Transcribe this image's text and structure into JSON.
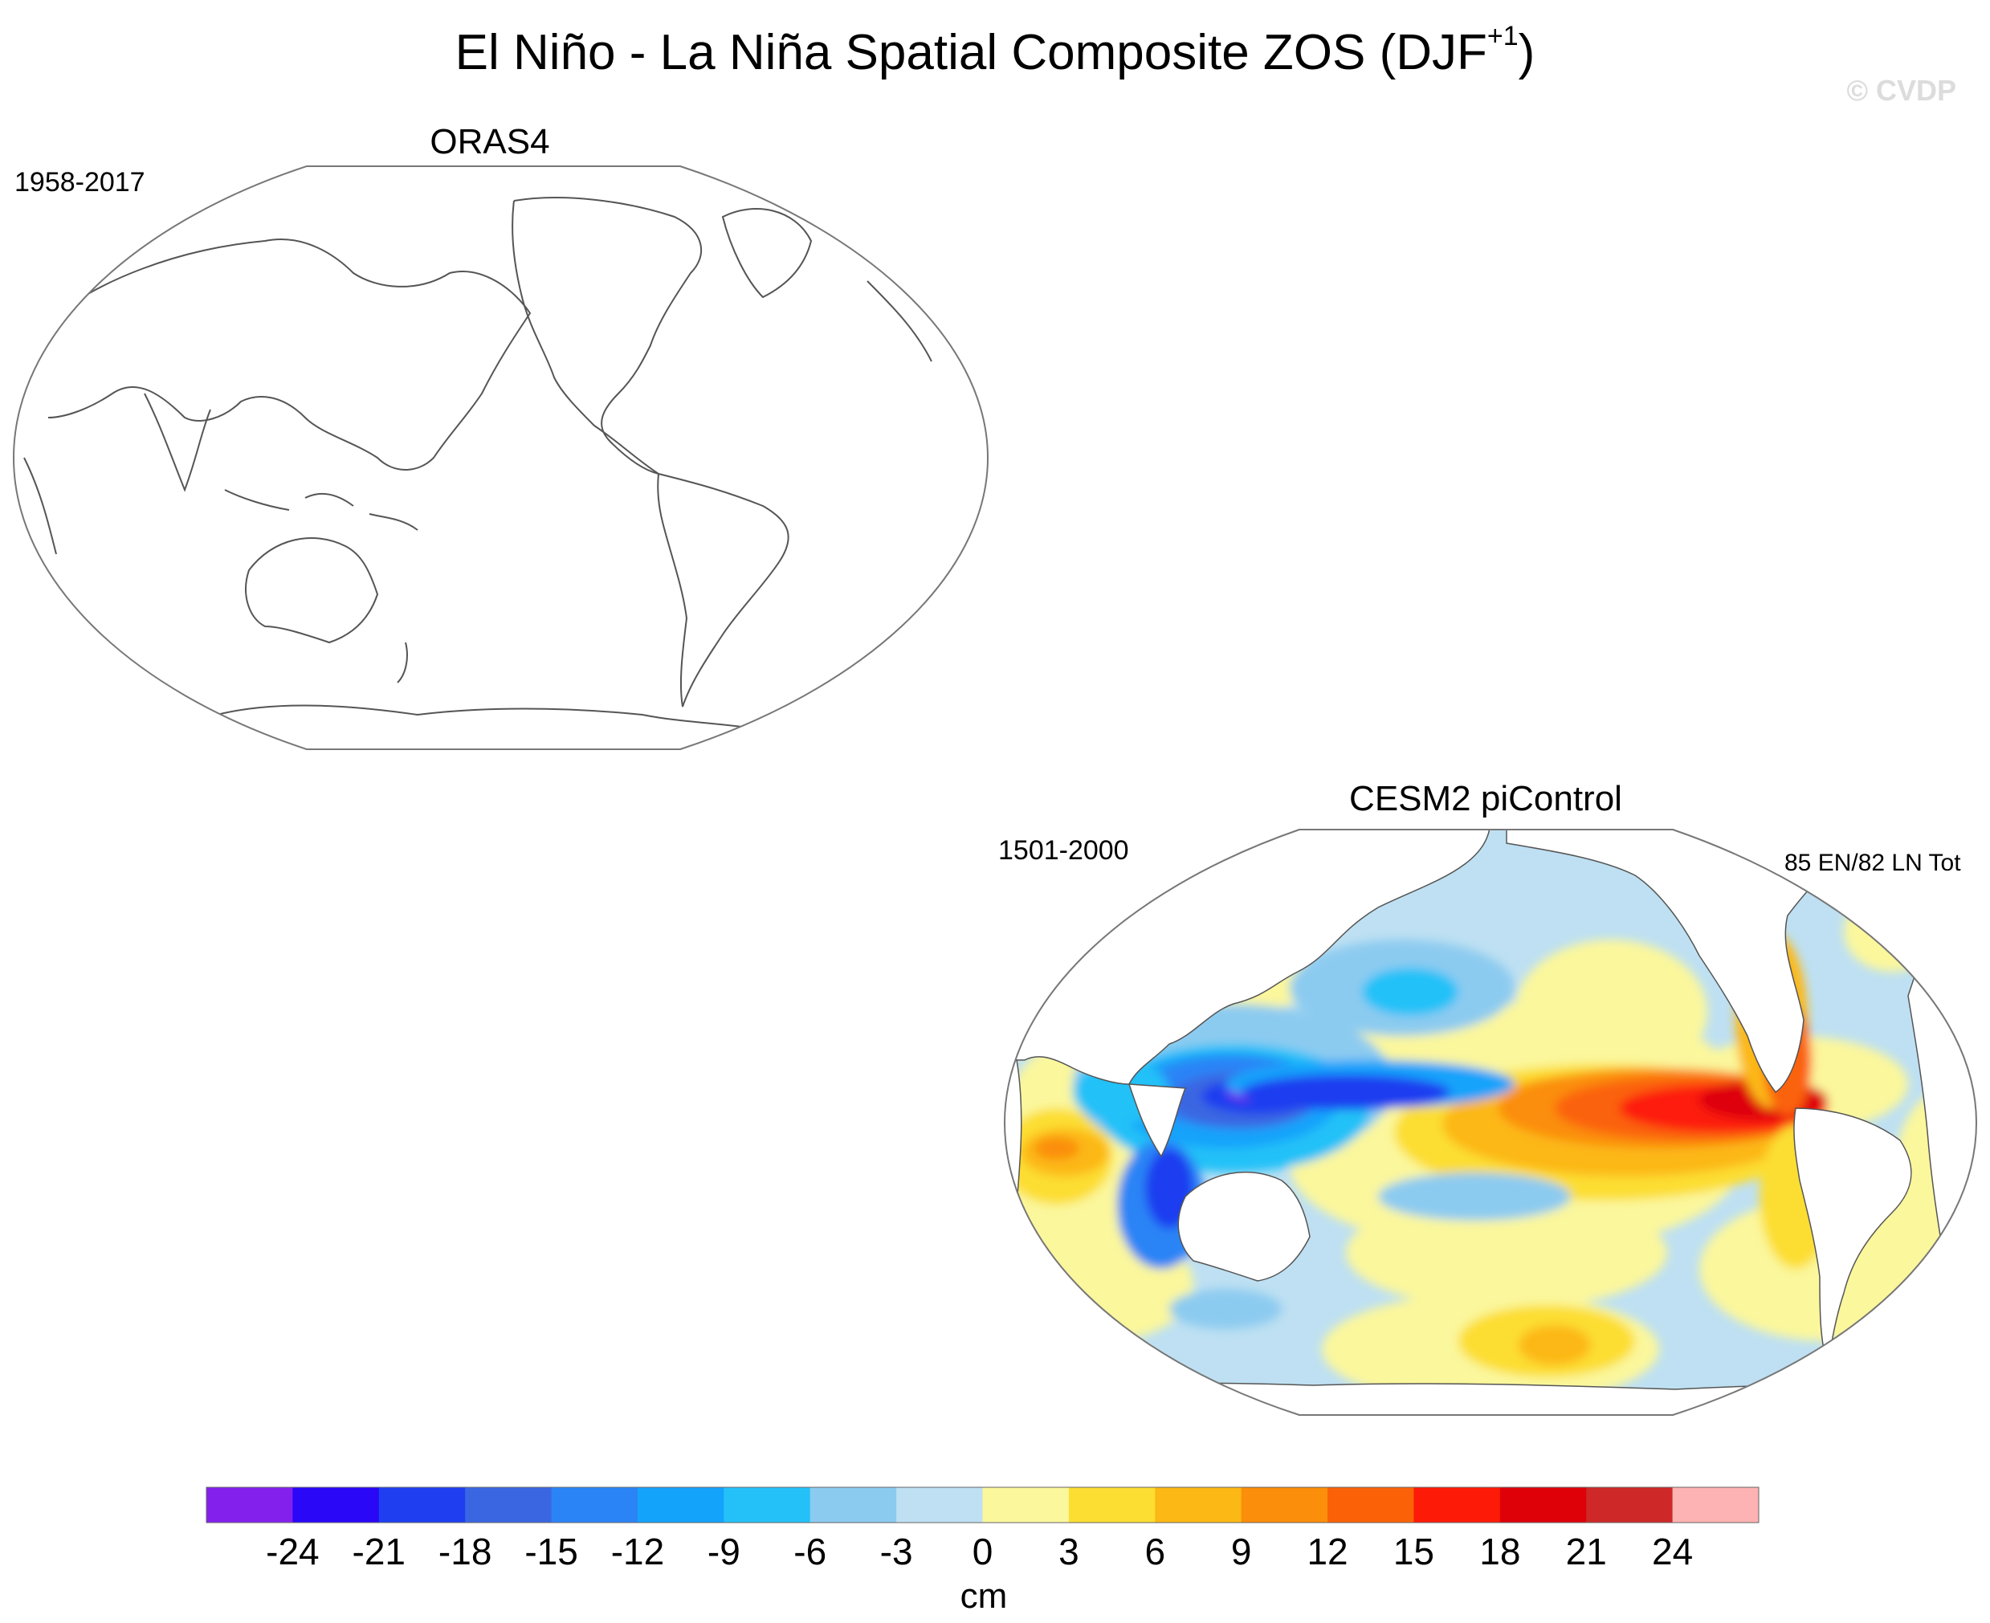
{
  "figure": {
    "title_main": "El Niño - La Niña Spatial Composite ZOS (DJF",
    "title_superscript": "+1",
    "title_close": ")",
    "watermark": "© CVDP"
  },
  "panels": [
    {
      "name": "ORAS4",
      "period": "1958-2017",
      "event_count": "",
      "has_data": false
    },
    {
      "name": "CESM2 piControl",
      "period": "1501-2000",
      "event_count": "85 EN/82 LN Tot",
      "has_data": true
    }
  ],
  "colorbar": {
    "units": "cm",
    "tick_labels": [
      "-24",
      "-21",
      "-18",
      "-15",
      "-12",
      "-9",
      "-6",
      "-3",
      "0",
      "3",
      "6",
      "9",
      "12",
      "15",
      "18",
      "21",
      "24"
    ],
    "colors": [
      "#8420ec",
      "#2a07f7",
      "#1e3ef0",
      "#3a66e2",
      "#2b84f6",
      "#14a3fb",
      "#24c1f8",
      "#8ccbf0",
      "#bee0f2",
      "#fbf79c",
      "#fcde33",
      "#fcb814",
      "#fb8e0a",
      "#fb6208",
      "#fd1a07",
      "#de0208",
      "#ce2828",
      "#fdb3b3"
    ]
  },
  "colors": {
    "land": "#ffffff",
    "coast": "#555555",
    "frame": "#777777",
    "watermark": "#dcdcdc"
  }
}
